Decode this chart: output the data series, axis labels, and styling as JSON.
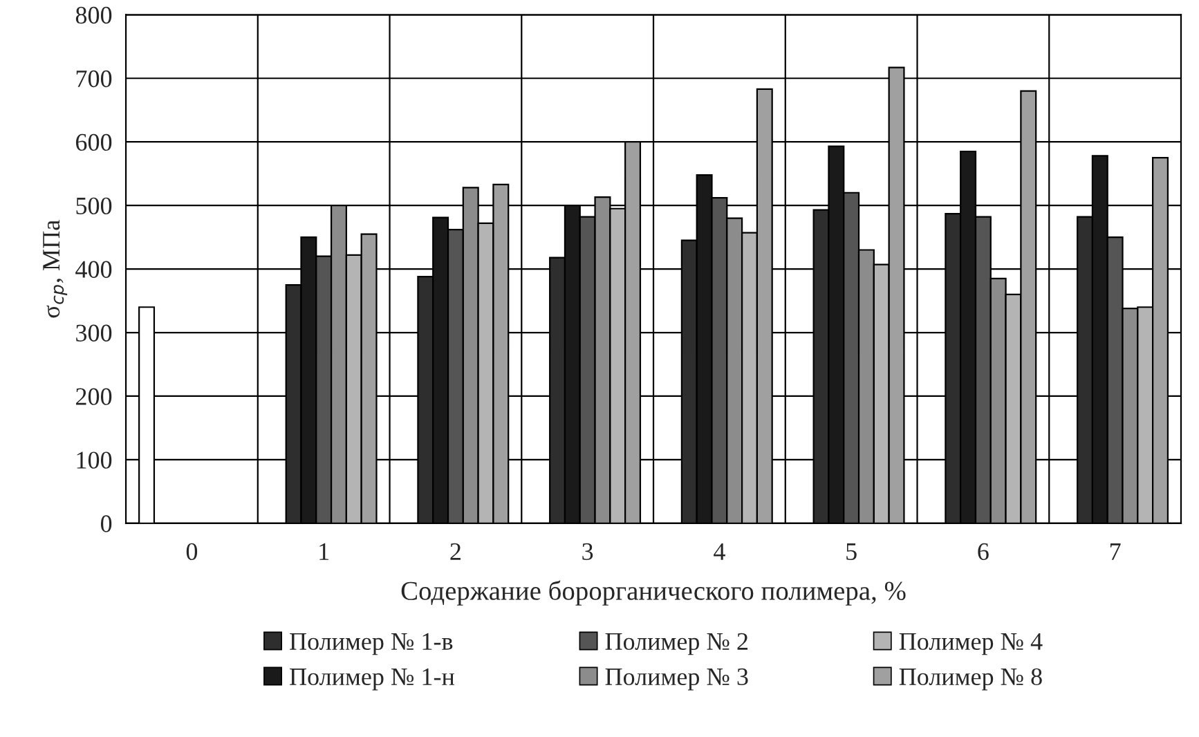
{
  "chart_data": {
    "type": "bar",
    "xlabel": "Содержание борорганического полимера, %",
    "ylabel": "σ$_{ср}$, МПа",
    "categories": [
      "0",
      "1",
      "2",
      "3",
      "4",
      "5",
      "6",
      "7"
    ],
    "series": [
      {
        "color": "#ffffff",
        "values": [
          340,
          null,
          null,
          null,
          null,
          null,
          null,
          null
        ]
      },
      {
        "name": "Полимер № 1-в",
        "color": "#2e2e2e",
        "values": [
          null,
          375,
          388,
          418,
          445,
          493,
          487,
          482
        ]
      },
      {
        "name": "Полимер № 1-н",
        "color": "#1a1a1a",
        "values": [
          null,
          450,
          481,
          500,
          548,
          593,
          585,
          578
        ]
      },
      {
        "name": "Полимер № 2",
        "color": "#555555",
        "values": [
          null,
          420,
          462,
          482,
          512,
          520,
          482,
          450
        ]
      },
      {
        "name": "Полимер № 3",
        "color": "#8c8c8c",
        "values": [
          null,
          500,
          528,
          513,
          480,
          430,
          385,
          338
        ]
      },
      {
        "name": "Полимер № 4",
        "color": "#b4b4b4",
        "values": [
          null,
          422,
          472,
          495,
          457,
          407,
          360,
          340
        ]
      },
      {
        "name": "Полимер № 8",
        "color": "#a0a0a0",
        "values": [
          null,
          455,
          533,
          600,
          683,
          717,
          680,
          575
        ]
      }
    ],
    "ylim": [
      0,
      800
    ],
    "yticks": [
      0,
      100,
      200,
      300,
      400,
      500,
      600,
      700,
      800
    ],
    "grid": true,
    "legend": "bottom"
  }
}
